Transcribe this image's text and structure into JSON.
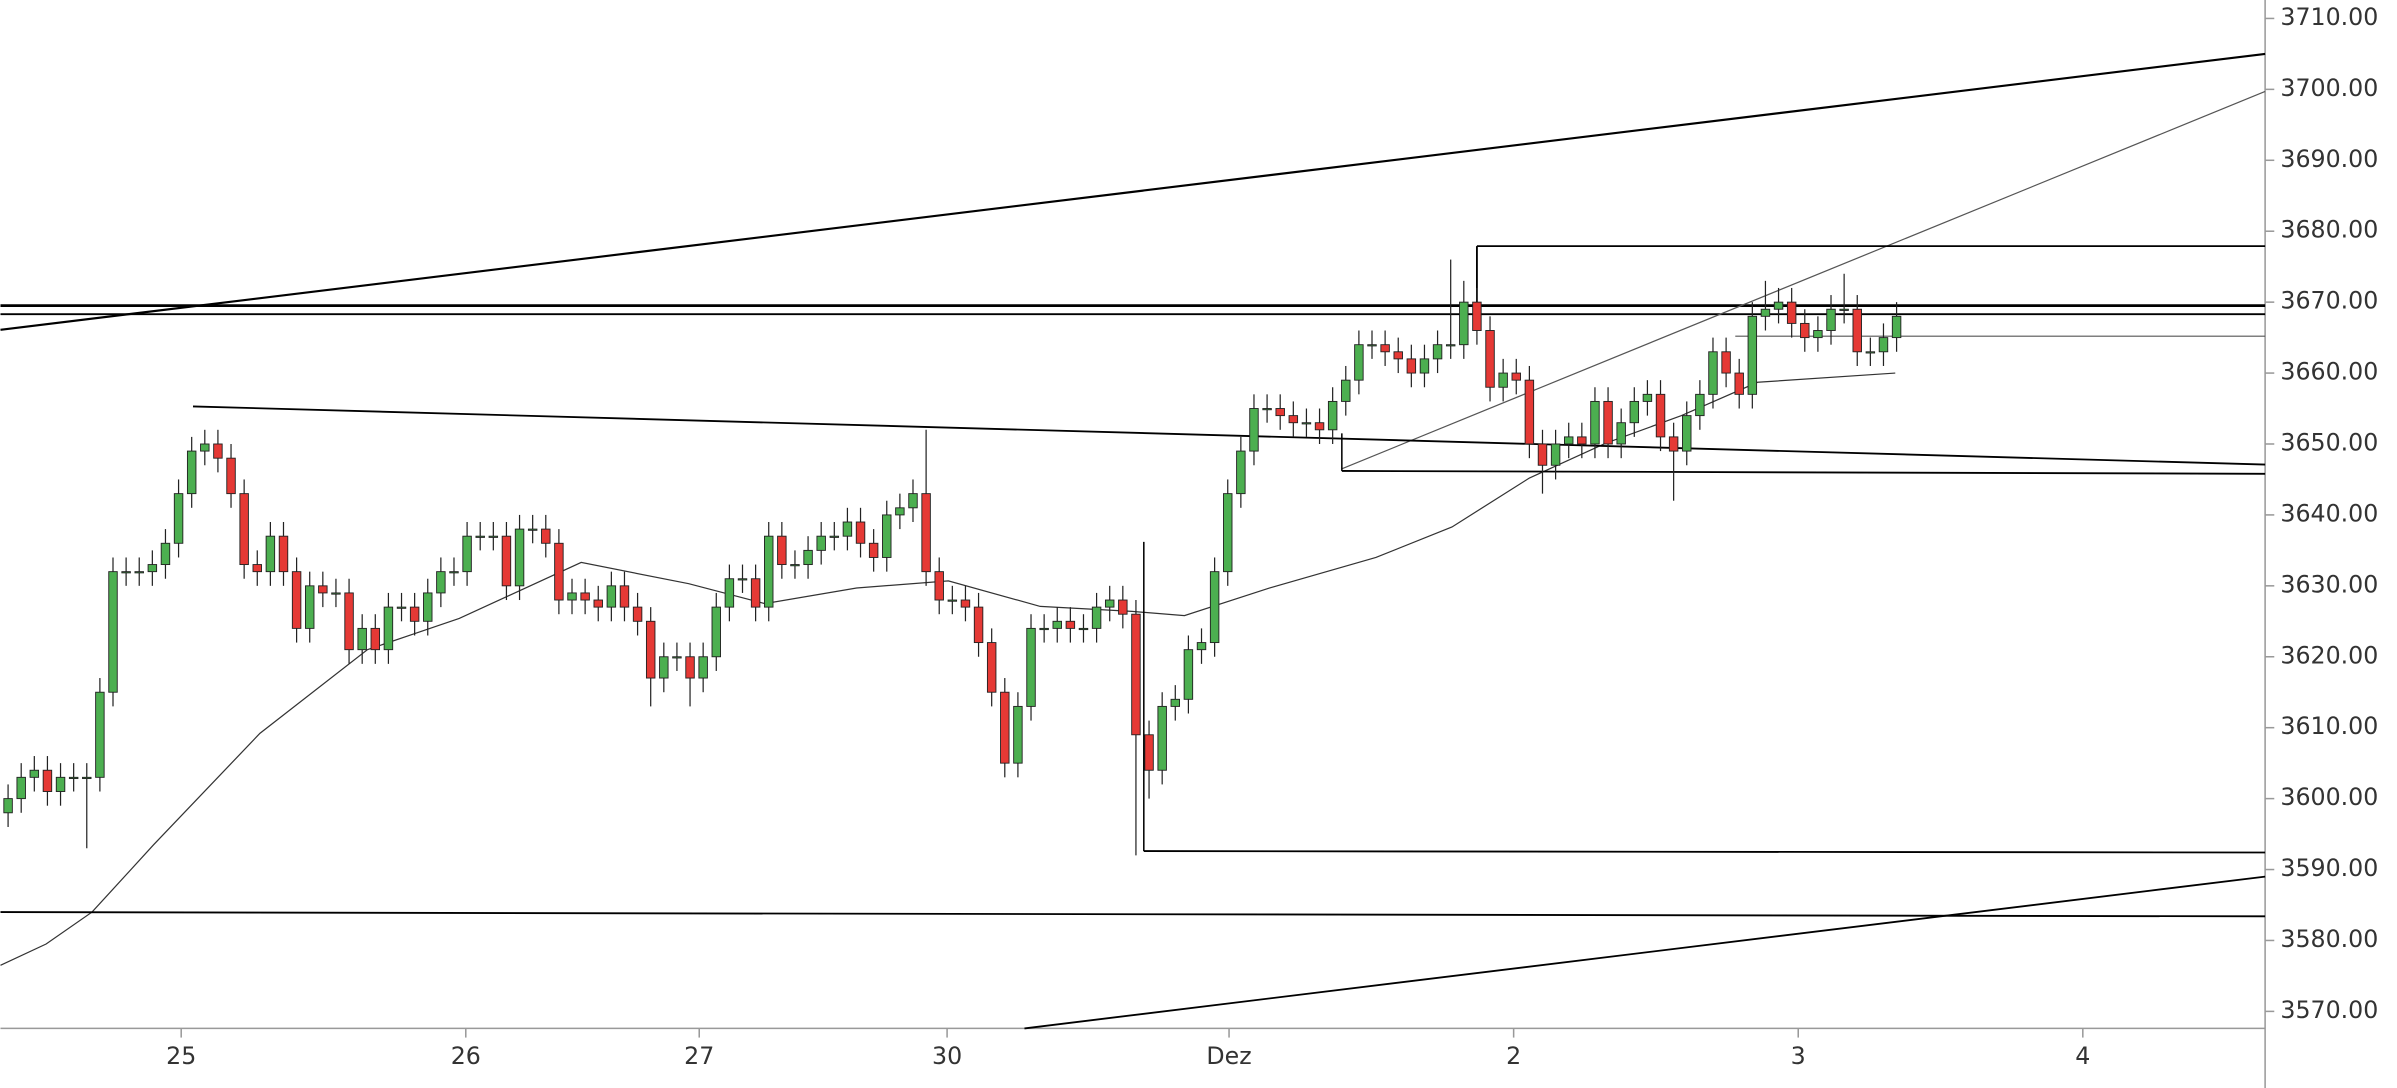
{
  "chart_data": {
    "type": "candlestick",
    "up_color": "#4caf50",
    "down_color": "#e53935",
    "x": [
      0,
      1,
      2,
      3,
      4,
      5,
      6,
      7,
      8,
      9,
      10,
      11,
      12,
      13,
      14,
      15,
      16,
      17,
      18,
      19,
      20,
      21,
      22,
      23,
      24,
      25,
      26,
      27,
      28,
      29,
      30,
      31,
      32,
      33,
      34,
      35,
      36,
      37,
      38,
      39,
      40,
      41,
      42,
      43,
      44,
      45,
      46,
      47,
      48,
      49,
      50,
      51,
      52,
      53,
      54,
      55,
      56,
      57,
      58,
      59,
      60,
      61,
      62,
      63,
      64,
      65,
      66,
      67,
      68,
      69,
      70,
      71,
      72,
      73,
      74,
      75,
      76,
      77,
      78,
      79,
      80,
      81,
      82,
      83,
      84,
      85,
      86,
      87,
      88,
      89,
      90,
      91,
      92,
      93,
      94,
      95,
      96,
      97,
      98,
      99,
      100,
      101,
      102,
      103,
      104,
      105,
      106,
      107,
      108,
      109,
      110,
      111,
      112,
      113,
      114,
      115,
      116,
      117,
      118,
      119,
      120,
      121,
      122,
      123,
      124,
      125,
      126,
      127,
      128,
      129,
      130,
      131,
      132,
      133,
      134,
      135,
      136,
      137,
      138,
      139,
      140,
      141,
      142,
      143,
      144
    ],
    "open": [
      3598,
      3600,
      3603,
      3604,
      3601,
      3603,
      3603,
      3603,
      3615,
      3632,
      3632,
      3632,
      3633,
      3636,
      3643,
      3649,
      3650,
      3648,
      3643,
      3633,
      3632,
      3637,
      3632,
      3624,
      3630,
      3629,
      3629,
      3621,
      3624,
      3621,
      3627,
      3627,
      3625,
      3629,
      3632,
      3632,
      3637,
      3637,
      3637,
      3630,
      3638,
      3638,
      3636,
      3628,
      3629,
      3628,
      3627,
      3630,
      3627,
      3625,
      3617,
      3620,
      3620,
      3617,
      3620,
      3627,
      3631,
      3631,
      3627,
      3637,
      3633,
      3633,
      3635,
      3637,
      3637,
      3639,
      3636,
      3634,
      3640,
      3641,
      3643,
      3632,
      3628,
      3628,
      3627,
      3622,
      3615,
      3605,
      3613,
      3624,
      3624,
      3625,
      3624,
      3624,
      3627,
      3628,
      3626,
      3609,
      3604,
      3613,
      3614,
      3621,
      3622,
      3632,
      3643,
      3649,
      3655,
      3655,
      3654,
      3653,
      3653,
      3652,
      3656,
      3659,
      3664,
      3664,
      3663,
      3662,
      3660,
      3662,
      3664,
      3664,
      3670,
      3666,
      3658,
      3660,
      3659,
      3650,
      3647,
      3650,
      3651,
      3650,
      3656,
      3650,
      3653,
      3656,
      3657,
      3651,
      3649,
      3654,
      3657,
      3663,
      3660,
      3657,
      3668,
      3669,
      3670,
      3667,
      3665,
      3666,
      3669,
      3669,
      3663,
      3663,
      3665
    ],
    "high": [
      3602,
      3605,
      3606,
      3606,
      3605,
      3605,
      3605,
      3617,
      3634,
      3634,
      3634,
      3635,
      3638,
      3645,
      3651,
      3652,
      3652,
      3650,
      3645,
      3635,
      3639,
      3639,
      3634,
      3632,
      3632,
      3631,
      3631,
      3626,
      3626,
      3629,
      3629,
      3629,
      3631,
      3634,
      3634,
      3639,
      3639,
      3639,
      3639,
      3640,
      3640,
      3640,
      3638,
      3631,
      3631,
      3630,
      3632,
      3632,
      3629,
      3627,
      3622,
      3622,
      3622,
      3622,
      3629,
      3633,
      3633,
      3633,
      3639,
      3639,
      3635,
      3637,
      3639,
      3639,
      3641,
      3641,
      3638,
      3642,
      3643,
      3645,
      3652,
      3634,
      3630,
      3630,
      3629,
      3624,
      3617,
      3615,
      3626,
      3626,
      3627,
      3627,
      3626,
      3629,
      3630,
      3630,
      3628,
      3611,
      3615,
      3616,
      3623,
      3624,
      3634,
      3645,
      3651,
      3657,
      3657,
      3657,
      3656,
      3655,
      3655,
      3658,
      3661,
      3666,
      3666,
      3666,
      3665,
      3664,
      3664,
      3666,
      3676,
      3673,
      3672,
      3668,
      3662,
      3662,
      3661,
      3652,
      3652,
      3653,
      3653,
      3658,
      3658,
      3655,
      3658,
      3659,
      3659,
      3653,
      3656,
      3659,
      3665,
      3665,
      3662,
      3670,
      3673,
      3672,
      3672,
      3669,
      3668,
      3671,
      3674,
      3671,
      3665,
      3667,
      3670
    ],
    "low": [
      3596,
      3598,
      3601,
      3599,
      3599,
      3601,
      3593,
      3601,
      3613,
      3630,
      3630,
      3630,
      3631,
      3634,
      3641,
      3647,
      3646,
      3641,
      3631,
      3630,
      3630,
      3630,
      3622,
      3622,
      3627,
      3627,
      3619,
      3619,
      3619,
      3619,
      3625,
      3623,
      3623,
      3627,
      3630,
      3630,
      3635,
      3635,
      3628,
      3628,
      3636,
      3634,
      3626,
      3626,
      3626,
      3625,
      3625,
      3625,
      3623,
      3613,
      3615,
      3618,
      3613,
      3615,
      3618,
      3625,
      3629,
      3625,
      3625,
      3631,
      3631,
      3631,
      3633,
      3635,
      3635,
      3634,
      3632,
      3632,
      3638,
      3639,
      3630,
      3626,
      3626,
      3625,
      3620,
      3613,
      3603,
      3603,
      3611,
      3622,
      3622,
      3622,
      3622,
      3622,
      3625,
      3624,
      3592,
      3600,
      3602,
      3611,
      3612,
      3619,
      3620,
      3630,
      3641,
      3647,
      3653,
      3652,
      3651,
      3651,
      3650,
      3650,
      3654,
      3657,
      3662,
      3661,
      3660,
      3658,
      3658,
      3660,
      3662,
      3662,
      3664,
      3656,
      3656,
      3657,
      3648,
      3643,
      3645,
      3648,
      3648,
      3648,
      3648,
      3648,
      3651,
      3654,
      3649,
      3642,
      3647,
      3652,
      3655,
      3658,
      3655,
      3655,
      3666,
      3667,
      3665,
      3663,
      3663,
      3664,
      3667,
      3661,
      3661,
      3661,
      3663
    ],
    "close": [
      3600,
      3603,
      3604,
      3601,
      3603,
      3603,
      3603,
      3615,
      3632,
      3632,
      3632,
      3633,
      3636,
      3643,
      3649,
      3650,
      3648,
      3643,
      3633,
      3632,
      3637,
      3632,
      3624,
      3630,
      3629,
      3629,
      3621,
      3624,
      3621,
      3627,
      3627,
      3625,
      3629,
      3632,
      3632,
      3637,
      3637,
      3637,
      3630,
      3638,
      3638,
      3636,
      3628,
      3629,
      3628,
      3627,
      3630,
      3627,
      3625,
      3617,
      3620,
      3620,
      3617,
      3620,
      3627,
      3631,
      3631,
      3627,
      3637,
      3633,
      3633,
      3635,
      3637,
      3637,
      3639,
      3636,
      3634,
      3640,
      3641,
      3643,
      3632,
      3628,
      3628,
      3627,
      3622,
      3615,
      3605,
      3613,
      3624,
      3624,
      3625,
      3624,
      3624,
      3627,
      3628,
      3626,
      3609,
      3604,
      3613,
      3614,
      3621,
      3622,
      3632,
      3643,
      3649,
      3655,
      3655,
      3654,
      3653,
      3653,
      3652,
      3656,
      3659,
      3664,
      3664,
      3663,
      3662,
      3660,
      3662,
      3664,
      3664,
      3670,
      3666,
      3658,
      3660,
      3659,
      3650,
      3647,
      3650,
      3651,
      3650,
      3656,
      3650,
      3653,
      3656,
      3657,
      3651,
      3649,
      3654,
      3657,
      3663,
      3660,
      3657,
      3668,
      3669,
      3670,
      3667,
      3665,
      3666,
      3669,
      3669,
      3663,
      3663,
      3665,
      3668
    ],
    "moving_average": {
      "color": "#333333",
      "x": [
        -0.58,
        2.9,
        6.4,
        11.1,
        19.2,
        27.4,
        34.4,
        43.7,
        51.9,
        57.7,
        64.7,
        71.7,
        78.7,
        85.7,
        89.7,
        96.2,
        104.3,
        110.1,
        116.0,
        121.8,
        127.6,
        133.4,
        143.9
      ],
      "values": [
        3576.5,
        3579.5,
        3584.0,
        3593.5,
        3609.2,
        3621.0,
        3625.4,
        3633.3,
        3630.3,
        3627.5,
        3629.7,
        3630.7,
        3627.1,
        3626.4,
        3625.8,
        3629.7,
        3634.0,
        3638.3,
        3645.2,
        3650.1,
        3654.0,
        3658.7,
        3660.0
      ]
    },
    "lines": [
      {
        "x": [
          -0.58,
          172.1
        ],
        "y": [
          3666.1,
          3705.0
        ],
        "color": "#000000",
        "width": 1.4
      },
      {
        "x": [
          -0.58,
          172.1
        ],
        "y": [
          3669.5,
          3669.5
        ],
        "color": "#000000",
        "width": 1.8
      },
      {
        "x": [
          -0.58,
          172.1
        ],
        "y": [
          3668.3,
          3668.3
        ],
        "color": "#000000",
        "width": 1.2
      },
      {
        "x": [
          101.7,
          172.1
        ],
        "y": [
          3646.5,
          3699.7
        ],
        "color": "#555555",
        "width": 0.8
      },
      {
        "x": [
          112,
          172.1
        ],
        "y": [
          3677.9,
          3677.9
        ],
        "color": "#000000",
        "width": 1.2
      },
      {
        "x": [
          112,
          112
        ],
        "y": [
          3677.9,
          3668.3
        ],
        "color": "#000000",
        "width": 1.2
      },
      {
        "x": [
          14.1,
          172.1
        ],
        "y": [
          3655.3,
          3647.1
        ],
        "color": "#000000",
        "width": 1.2
      },
      {
        "x": [
          101.7,
          172.1
        ],
        "y": [
          3646.2,
          3645.8
        ],
        "color": "#000000",
        "width": 1.2
      },
      {
        "x": [
          101.7,
          101.7
        ],
        "y": [
          3646.2,
          3651.5
        ],
        "color": "#000000",
        "width": 1
      },
      {
        "x": [
          131.7,
          172.1
        ],
        "y": [
          3665.2,
          3665.2
        ],
        "color": "#555555",
        "width": 0.8
      },
      {
        "x": [
          86.6,
          172.1
        ],
        "y": [
          3592.6,
          3592.4
        ],
        "color": "#000000",
        "width": 1.2
      },
      {
        "x": [
          86.6,
          86.6
        ],
        "y": [
          3592.6,
          3636.2
        ],
        "color": "#000000",
        "width": 1
      },
      {
        "x": [
          -0.58,
          172.1
        ],
        "y": [
          3584.0,
          3583.4
        ],
        "color": "#000000",
        "width": 1.2
      },
      {
        "x": [
          77.5,
          172.1
        ],
        "y": [
          3567.6,
          3589.0
        ],
        "color": "#000000",
        "width": 1.2
      }
    ],
    "xlim": [
      -0.58,
      172.1
    ],
    "xticks": [
      {
        "value": 13.2,
        "label": "25"
      },
      {
        "value": 34.9,
        "label": "26"
      },
      {
        "value": 52.7,
        "label": "27"
      },
      {
        "value": 71.6,
        "label": "30"
      },
      {
        "value": 93.1,
        "label": "Dez"
      },
      {
        "value": 114.8,
        "label": "2"
      },
      {
        "value": 136.5,
        "label": "3"
      },
      {
        "value": 158.2,
        "label": "4"
      }
    ],
    "ylim": [
      3567.6,
      3712.6
    ],
    "yticks": [
      {
        "value": 3570,
        "label": "3570.00"
      },
      {
        "value": 3580,
        "label": "3580.00"
      },
      {
        "value": 3590,
        "label": "3590.00"
      },
      {
        "value": 3600,
        "label": "3600.00"
      },
      {
        "value": 3610,
        "label": "3610.00"
      },
      {
        "value": 3620,
        "label": "3620.00"
      },
      {
        "value": 3630,
        "label": "3630.00"
      },
      {
        "value": 3640,
        "label": "3640.00"
      },
      {
        "value": 3650,
        "label": "3650.00"
      },
      {
        "value": 3660,
        "label": "3660.00"
      },
      {
        "value": 3670,
        "label": "3670.00"
      },
      {
        "value": 3680,
        "label": "3680.00"
      },
      {
        "value": 3690,
        "label": "3690.00"
      },
      {
        "value": 3700,
        "label": "3700.00"
      },
      {
        "value": 3710,
        "label": "3710.00"
      }
    ]
  }
}
